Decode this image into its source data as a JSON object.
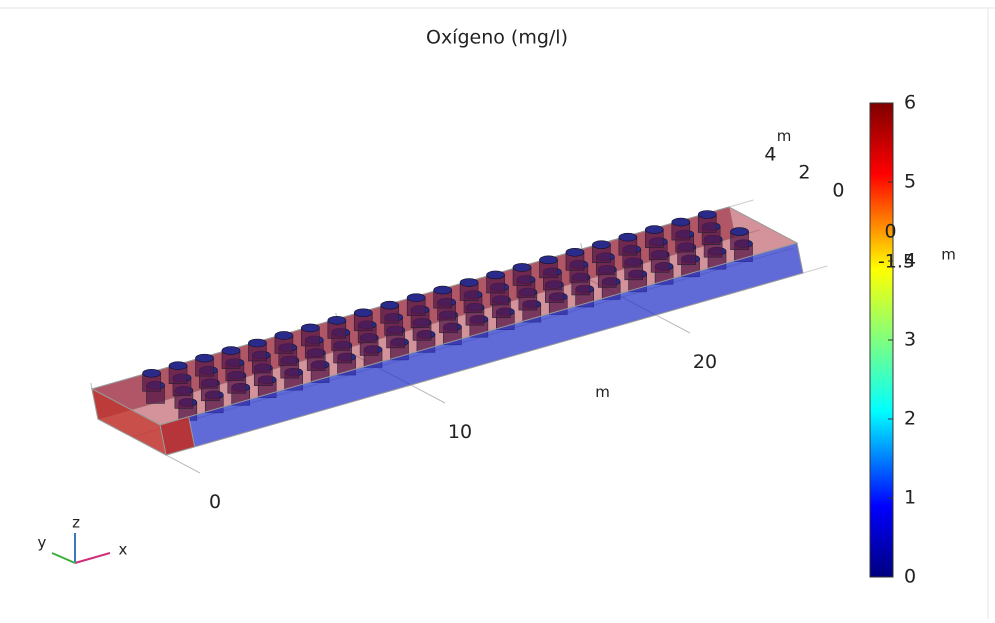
{
  "chart_data": {
    "type": "volume3d",
    "title": "Oxígeno (mg/l)",
    "xlabel": "m",
    "ylabel": "m",
    "zlabel": "m",
    "xlim": [
      0,
      26
    ],
    "xticks": [
      0,
      10,
      20
    ],
    "ylim": [
      0,
      4
    ],
    "yticks": [
      4,
      2,
      0
    ],
    "zlim": [
      -1.5,
      0
    ],
    "zticks": [
      0,
      -1.5
    ],
    "colorbar": {
      "clim": [
        0,
        6
      ],
      "ticks": [
        0,
        1,
        2,
        3,
        4,
        5,
        6
      ],
      "colormap": "rainbow"
    },
    "triad": [
      "x",
      "y",
      "z"
    ]
  }
}
